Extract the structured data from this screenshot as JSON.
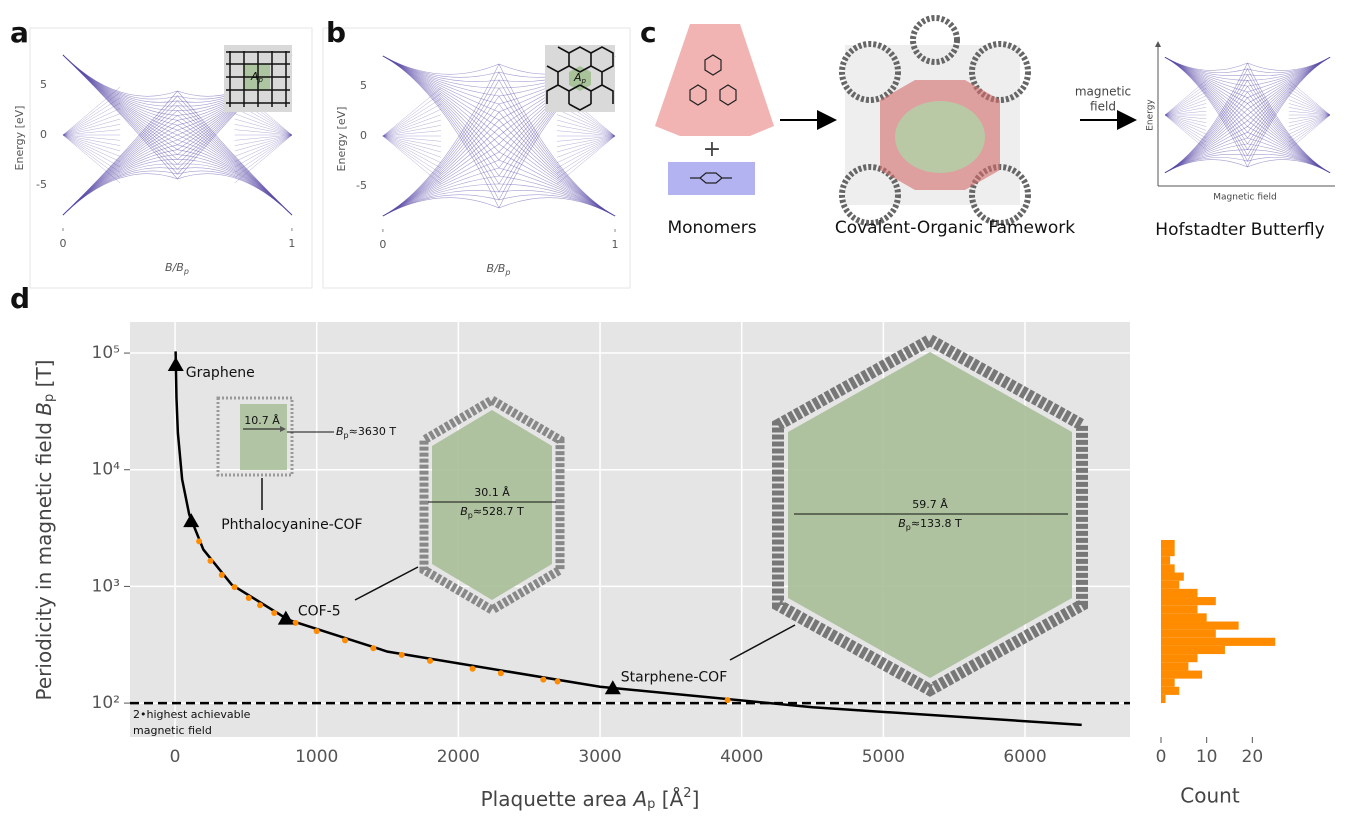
{
  "panel_labels": [
    "a",
    "b",
    "c",
    "d"
  ],
  "schematic": {
    "labels": [
      "Monomers",
      "Covalent-Organic Famework",
      "Hofstadter Butterfly"
    ],
    "arrow_label": [
      "magnetic",
      "field"
    ],
    "axis_labels": {
      "y": "Energy",
      "x": "Magnetic field"
    }
  },
  "chart_data": [
    {
      "type": "butterfly",
      "lattice": "square",
      "xlabel": [
        "B/B",
        "p"
      ],
      "ylabel": "Energy [eV]",
      "inset_label": [
        "A",
        "p"
      ],
      "xlim": [
        -0.048,
        1.044
      ],
      "ylim": [
        -9.3,
        8.7
      ],
      "xticks": [
        0,
        1
      ],
      "yticks": [
        -5,
        0,
        5
      ],
      "color": "#5b4aa8"
    },
    {
      "type": "butterfly",
      "lattice": "honeycomb",
      "xlabel": [
        "B/B",
        "p"
      ],
      "ylabel": "Energy [eV]",
      "inset_label": [
        "A",
        "p"
      ],
      "xlim": [
        -0.047,
        1.043
      ],
      "ylim": [
        -9.3,
        8.7
      ],
      "xticks": [
        0,
        1
      ],
      "yticks": [
        -5,
        0,
        5
      ],
      "color": "#5b4aa8"
    },
    {
      "type": "line",
      "log_y": true,
      "grid": true,
      "xlabel": [
        "Plaquette area ",
        "A",
        "p",
        " [Å",
        "2",
        "]"
      ],
      "ylabel": [
        "Periodicity in magnetic field ",
        "B",
        "p",
        " [T]"
      ],
      "xlim": [
        -318,
        6741
      ],
      "ylim": [
        51.2,
        184600
      ],
      "xticks": [
        0,
        1000,
        2000,
        3000,
        4000,
        5000,
        6000
      ],
      "yticks": [
        {
          "value": 100,
          "label": "10²"
        },
        {
          "value": 1000,
          "label": "10³"
        },
        {
          "value": 10000,
          "label": "10⁴"
        },
        {
          "value": 100000,
          "label": "10⁵"
        }
      ],
      "curve": {
        "color": "#000000",
        "x": [
          4,
          10,
          20,
          50,
          100,
          200,
          400,
          800,
          1500,
          3000,
          4500,
          6400
        ],
        "y": [
          103400,
          41360,
          20680,
          8272,
          4136,
          2068,
          1034,
          517,
          276,
          138,
          92,
          65
        ]
      },
      "points": {
        "color": "#000000",
        "labels": [
          "Graphene",
          "Phthalocyanine-COF",
          "COF-5",
          "Starphene-COF"
        ],
        "x": [
          5,
          114,
          782,
          3090
        ],
        "y": [
          79000,
          3630,
          529,
          134
        ]
      },
      "highlights": {
        "color": "#ff8c00",
        "x": [
          170,
          250,
          330,
          420,
          520,
          600,
          700,
          850,
          1000,
          1200,
          1400,
          1600,
          1800,
          2100,
          2300,
          2600,
          2700,
          3900
        ],
        "y": [
          2433,
          1654,
          1253,
          985,
          795,
          689,
          591,
          487,
          414,
          345,
          295,
          259,
          230,
          197,
          180,
          159,
          153,
          106
        ]
      },
      "hline": {
        "y": 100,
        "label": [
          "2•highest achievable",
          "magnetic field"
        ]
      },
      "insets": [
        {
          "width_label": "10.7 Å",
          "field_label": [
            "B",
            "p",
            "≈3630 T"
          ]
        },
        {
          "width_label": "30.1 Å",
          "field_label": [
            "B",
            "p",
            "≈528.7 T"
          ]
        },
        {
          "width_label": "59.7 Å",
          "field_label": [
            "B",
            "p",
            "≈133.8 T"
          ]
        }
      ]
    },
    {
      "type": "histogram",
      "orientation": "horizontal",
      "log_y": true,
      "color": "#ff8c00",
      "xlabel": "Count",
      "xlim": [
        -3.5,
        37
      ],
      "xticks": [
        0,
        10,
        20
      ],
      "ylim": [
        51.2,
        184600
      ],
      "bins": [
        100,
        117.5,
        138,
        162,
        190,
        224,
        263,
        309,
        363,
        426,
        500,
        588,
        690,
        811,
        953,
        1119,
        1315,
        1545,
        1814,
        2131,
        2500
      ],
      "counts": [
        1,
        4,
        3,
        9,
        6,
        8,
        14,
        25,
        12,
        17,
        10,
        8,
        12,
        8,
        4,
        5,
        3,
        2,
        3,
        3
      ]
    }
  ]
}
